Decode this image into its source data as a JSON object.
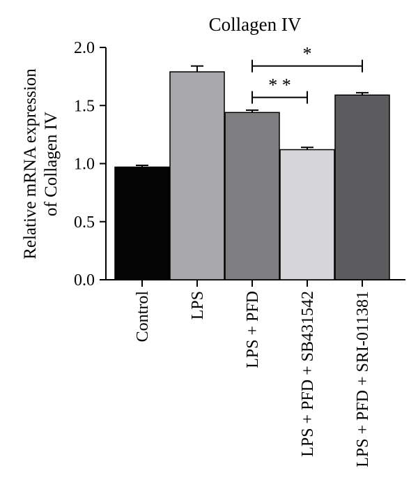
{
  "chart_data": {
    "type": "bar",
    "title": "Collagen IV",
    "ylabel_lines": [
      "Relative mRNA expression",
      "of Collagen IV"
    ],
    "xlabel": "",
    "ylim": [
      0,
      2.0
    ],
    "yticks": [
      "0.0",
      "0.5",
      "1.0",
      "1.5",
      "2.0"
    ],
    "categories": [
      "Control",
      "LPS",
      "LPS + PFD",
      "LPS + PFD + SB431542",
      "LPS + PFD + SRI-011381"
    ],
    "values": [
      0.97,
      1.79,
      1.44,
      1.12,
      1.59
    ],
    "errors": [
      0.015,
      0.05,
      0.02,
      0.02,
      0.02
    ],
    "bar_colors": [
      "#050505",
      "#a9a9ab",
      "#7e7e80",
      "#d6d6d8",
      "#5c5c5e"
    ],
    "significance": [
      {
        "from": 2,
        "to": 3,
        "label": "* *",
        "y": 1.57
      },
      {
        "from": 2,
        "to": 4,
        "label": "*",
        "y": 1.84
      }
    ]
  }
}
